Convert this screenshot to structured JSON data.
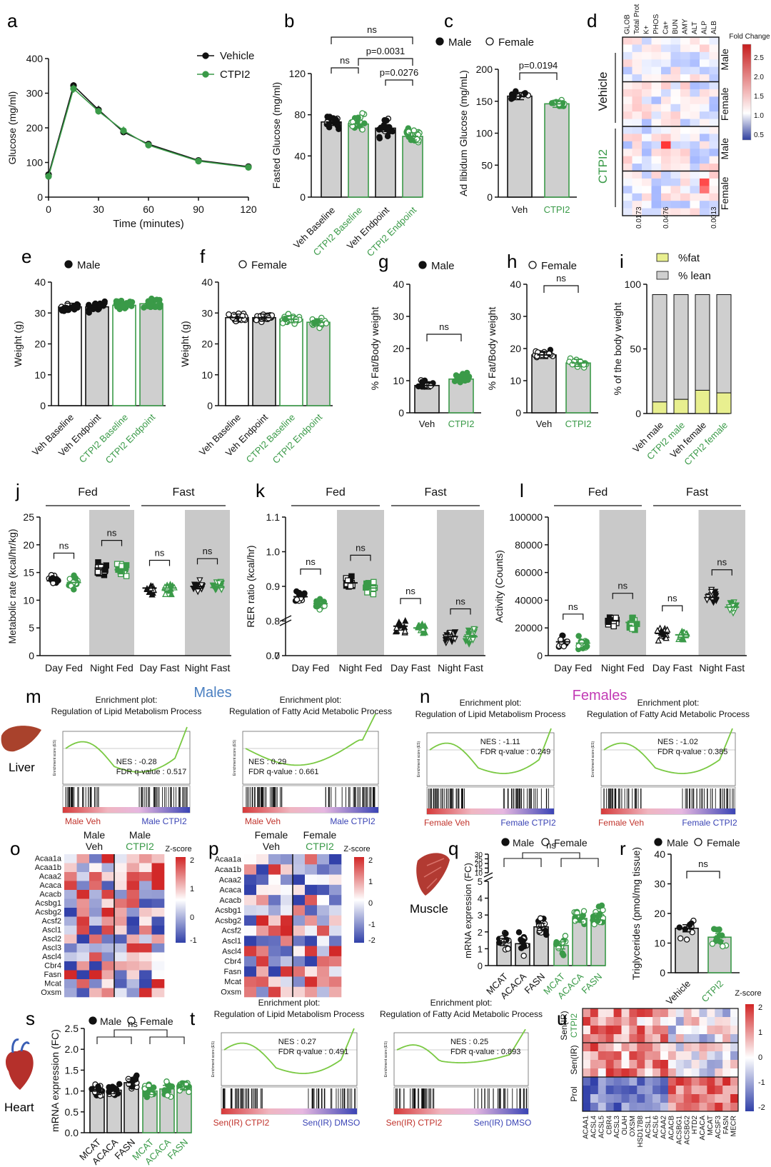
{
  "figure": {
    "panel_letters": [
      "a",
      "b",
      "c",
      "d",
      "e",
      "f",
      "g",
      "h",
      "i",
      "j",
      "k",
      "l",
      "m",
      "n",
      "o",
      "p",
      "q",
      "r",
      "s",
      "t",
      "u"
    ],
    "section_titles": {
      "males": "Males",
      "females": "Females"
    },
    "organ_labels": {
      "liver": "Liver",
      "muscle": "Muscle",
      "heart": "Heart"
    },
    "colors": {
      "vehicle": "#111111",
      "ctpi2": "#3a9a48",
      "bar_gray": "#cfcfcf",
      "shade": "#c9c9c9",
      "gsea_line": "#7ac943",
      "males_title": "#4a7fc1",
      "females_title": "#c23bb5",
      "hm_red": "#d62f2f",
      "hm_blue": "#3b4bb5",
      "fat_yellow": "#e8ef8f"
    }
  },
  "chart_data": [
    {
      "panel": "a",
      "type": "line",
      "title": "",
      "xlabel": "Time (minutes)",
      "ylabel": "Glucose (mg/ml)",
      "xlim": [
        0,
        120
      ],
      "ylim": [
        0,
        400
      ],
      "xticks": [
        0,
        30,
        60,
        90,
        120
      ],
      "yticks": [
        0,
        100,
        200,
        300,
        400
      ],
      "legend": "top-right",
      "series": [
        {
          "name": "Vehicle",
          "x": [
            0,
            15,
            30,
            45,
            60,
            90,
            120
          ],
          "y": [
            65,
            322,
            252,
            188,
            153,
            106,
            88
          ],
          "err": [
            5,
            10,
            12,
            9,
            8,
            4,
            4
          ]
        },
        {
          "name": "CTPI2",
          "x": [
            0,
            15,
            30,
            45,
            60,
            90,
            120
          ],
          "y": [
            60,
            313,
            248,
            192,
            150,
            104,
            86
          ],
          "err": [
            5,
            12,
            10,
            12,
            7,
            4,
            3
          ]
        }
      ]
    },
    {
      "panel": "b",
      "type": "bar",
      "ylabel": "Fasted Glucose (mg/ml)",
      "ylim": [
        0,
        120
      ],
      "yticks": [
        0,
        40,
        80,
        120
      ],
      "categories": [
        "Veh Baseline",
        "CTPI2 Baseline",
        "Veh Endpoint",
        "CTPI2 Endpoint"
      ],
      "values": [
        73,
        71,
        67,
        59
      ],
      "annotations": [
        "ns",
        "ns",
        "p=0.0031",
        "p=0.0276"
      ]
    },
    {
      "panel": "c",
      "type": "bar",
      "ylabel": "Ad libidum Glucose (mg/mL)",
      "ylim": [
        0,
        200
      ],
      "yticks": [
        0,
        50,
        100,
        150,
        200
      ],
      "legend": [
        "Male",
        "Female"
      ],
      "categories": [
        "Veh",
        "CTPI2"
      ],
      "values": [
        158,
        146
      ],
      "annotations": [
        "p=0.0194"
      ]
    },
    {
      "panel": "d",
      "type": "heatmap",
      "columns": [
        "GLOB",
        "Total Prot",
        "K+",
        "PHOS",
        "Ca+",
        "BUN",
        "AMY",
        "ALT",
        "ALP",
        "ALB"
      ],
      "group_labels": [
        "Vehicle",
        "CTPI2"
      ],
      "row_labels": [
        "Male",
        "Female",
        "Male",
        "Female"
      ],
      "colorbar_title": "Fold Change",
      "colorbar_ticks": [
        "2.5",
        "2.0",
        "1.5",
        "1.0",
        "0.5"
      ],
      "bottom_values": [
        "0.0173",
        "0.0476",
        "0.0013"
      ]
    },
    {
      "panel": "e",
      "type": "bar",
      "legend": [
        "Male"
      ],
      "ylabel": "Weight (g)",
      "ylim": [
        0,
        40
      ],
      "yticks": [
        0,
        10,
        20,
        30,
        40
      ],
      "categories": [
        "Veh Baseline",
        "Veh Endpoint",
        "CTPI2 Baseline",
        "CTPI2 Endpoint"
      ],
      "values": [
        32,
        32,
        32.5,
        33
      ]
    },
    {
      "panel": "f",
      "type": "bar",
      "legend": [
        "Female"
      ],
      "ylabel": "Weight (g)",
      "ylim": [
        0,
        40
      ],
      "yticks": [
        0,
        10,
        20,
        30,
        40
      ],
      "categories": [
        "Veh Baseline",
        "Veh Endpoint",
        "CTPI2 Baseline",
        "CTPI2 Endpoint"
      ],
      "values": [
        28.5,
        28.5,
        28,
        27
      ]
    },
    {
      "panel": "g",
      "type": "bar",
      "legend": [
        "Male"
      ],
      "ylabel": "% Fat/Body weight",
      "ylim": [
        0,
        40
      ],
      "yticks": [
        0,
        10,
        20,
        30,
        40
      ],
      "categories": [
        "Veh",
        "CTPI2"
      ],
      "values": [
        8.5,
        10.5
      ],
      "annotations": [
        "ns"
      ]
    },
    {
      "panel": "h",
      "type": "bar",
      "legend": [
        "Female"
      ],
      "ylabel": "% Fat/Body weight",
      "ylim": [
        0,
        40
      ],
      "yticks": [
        0,
        10,
        20,
        30,
        40
      ],
      "categories": [
        "Veh",
        "CTPI2"
      ],
      "values": [
        18,
        15.5
      ],
      "annotations": [
        "ns"
      ]
    },
    {
      "panel": "i",
      "type": "bar",
      "stacked": true,
      "ylabel": "% of the body weight",
      "ylim": [
        0,
        100
      ],
      "yticks": [
        0,
        50,
        100
      ],
      "categories": [
        "Veh male",
        "CTPI2 male",
        "Veh female",
        "CTPI2 female"
      ],
      "series": [
        {
          "name": "%fat",
          "values": [
            9,
            11,
            18,
            16
          ]
        },
        {
          "name": "% lean",
          "values": [
            83,
            81,
            74,
            76
          ]
        }
      ]
    },
    {
      "panel": "j",
      "type": "scatter",
      "group_headers": [
        "Fed",
        "Fast"
      ],
      "ylabel": "Metabolic rate (kcal/hr/kg)",
      "ylim": [
        0,
        25
      ],
      "yticks": [
        0,
        5,
        10,
        15,
        20,
        25
      ],
      "categories": [
        "Day Fed",
        "Night Fed",
        "Day Fast",
        "Night Fast"
      ],
      "veh_means": [
        13.5,
        15.8,
        12.2,
        12.5
      ],
      "ctpi2_means": [
        13.2,
        15.5,
        12.2,
        12.3
      ],
      "annotations": [
        "ns",
        "ns",
        "ns",
        "ns"
      ]
    },
    {
      "panel": "k",
      "type": "scatter",
      "group_headers": [
        "Fed",
        "Fast"
      ],
      "ylabel": "RER ratio (kcal/hr)",
      "ylim": [
        0,
        1.1
      ],
      "yticks": [
        0.7,
        0.8,
        0.9,
        1.0,
        1.1
      ],
      "categories": [
        "Day Fed",
        "Night Fed",
        "Day Fast",
        "Night Fast"
      ],
      "veh_means": [
        0.87,
        0.91,
        0.785,
        0.755
      ],
      "ctpi2_means": [
        0.85,
        0.895,
        0.78,
        0.755
      ],
      "annotations": [
        "ns",
        "ns",
        "ns",
        "ns"
      ]
    },
    {
      "panel": "l",
      "type": "scatter",
      "group_headers": [
        "Fed",
        "Fast"
      ],
      "ylabel": "Activity (Counts)",
      "ylim": [
        0,
        100000
      ],
      "yticks": [
        0,
        20000,
        40000,
        60000,
        80000,
        100000
      ],
      "categories": [
        "Day Fed",
        "Night Fed",
        "Day Fast",
        "Night Fast"
      ],
      "veh_means": [
        10000,
        25000,
        16000,
        42000
      ],
      "ctpi2_means": [
        9000,
        24000,
        15000,
        35000
      ],
      "annotations": [
        "ns",
        "ns",
        "ns",
        "ns"
      ]
    },
    {
      "panel": "m-n-t",
      "type": "line",
      "plots": [
        {
          "panel": "m",
          "title_line1": "Enrichment plot:",
          "title_line2": "Regulation of Lipid Metabolism Process",
          "nes": "NES : -0.28",
          "fdr": "FDR q-value : 0.517",
          "left_label": "Male Veh",
          "right_label": "Male CTPI2"
        },
        {
          "panel": "m",
          "title_line1": "Enrichment plot:",
          "title_line2": "Regulation of Fatty Acid Metabolic Process",
          "nes": "NES : 0.29",
          "fdr": "FDR q-value : 0.661",
          "left_label": "Male Veh",
          "right_label": "Male CTPI2"
        },
        {
          "panel": "n",
          "title_line1": "Enrichment plot:",
          "title_line2": "Regulation of Lipid Metabolism Process",
          "nes": "NES : -1.11",
          "fdr": "FDR q-value : 0.249",
          "left_label": "Female Veh",
          "right_label": "Female CTPI2"
        },
        {
          "panel": "n",
          "title_line1": "Enrichment plot:",
          "title_line2": "Regulation of Fatty Acid Metabolic Process",
          "nes": "NES : -1.02",
          "fdr": "FDR q-value : 0.385",
          "left_label": "Female Veh",
          "right_label": "Female CTPI2"
        },
        {
          "panel": "t",
          "title_line1": "Enrichment plot:",
          "title_line2": "Regulation of Lipid Metabolism Process",
          "nes": "NES : 0.27",
          "fdr": "FDR q-value : 0.491",
          "left_label": "Sen(IR) CTPI2",
          "right_label": "Sen(IR) DMSO"
        },
        {
          "panel": "t",
          "title_line1": "Enrichment plot:",
          "title_line2": "Regulation of Fatty Acid Metabolic Process",
          "nes": "NES : 0.25",
          "fdr": "FDR q-value : 0.893",
          "left_label": "Sen(IR) CTPI2",
          "right_label": "Sen(IR) DMSO"
        }
      ]
    },
    {
      "panel": "o",
      "type": "heatmap",
      "column_groups": [
        "Male Veh",
        "Male CTPI2"
      ],
      "rows": [
        "Acaa1a",
        "Acaa1b",
        "Acaa2",
        "Acaca",
        "Acacb",
        "Acsbg1",
        "Acsbg2",
        "Acsf2",
        "Ascl1",
        "Ascl2",
        "Ascl3",
        "Ascl4",
        "Cbr4",
        "Fasn",
        "Mcat",
        "Oxsm"
      ],
      "colorbar_title": "Z-score",
      "colorbar_ticks": [
        "2",
        "1",
        "0",
        "-1"
      ]
    },
    {
      "panel": "p",
      "type": "heatmap",
      "column_groups": [
        "Female Veh",
        "Female CTPI2"
      ],
      "rows": [
        "Acaa1a",
        "Acaa1b",
        "Acaa2",
        "Acaca",
        "Acacb",
        "Acsbg1",
        "Acsbg2",
        "Acsf2",
        "Ascl1",
        "Ascl4",
        "Cbr4",
        "Fasn",
        "Mcat",
        "Oxsm"
      ],
      "colorbar_title": "Z-score",
      "colorbar_ticks": [
        "2",
        "1",
        "0",
        "-1",
        "-2"
      ]
    },
    {
      "panel": "q",
      "type": "bar",
      "legend": [
        "Male",
        "Female"
      ],
      "ylabel": "mRNA expression (FC)",
      "ylim": [
        0,
        30
      ],
      "yticks_low": [
        0,
        1,
        2,
        3,
        4,
        5
      ],
      "yticks_high": [
        10,
        15,
        20,
        25,
        30
      ],
      "categories": [
        "MCAT",
        "ACACA",
        "FASN",
        "MCAT",
        "ACACA",
        "FASN"
      ],
      "values": [
        1.4,
        1.3,
        2.3,
        1.2,
        2.8,
        2.9
      ],
      "annotations": [
        "ns"
      ]
    },
    {
      "panel": "r",
      "type": "bar",
      "legend": [
        "Male",
        "Female"
      ],
      "ylabel": "Triglycerides (pmol/mg tissue)",
      "ylim": [
        0,
        40
      ],
      "yticks": [
        0,
        10,
        20,
        30,
        40
      ],
      "categories": [
        "Vehicle",
        "CTPI2"
      ],
      "values": [
        15,
        12
      ],
      "annotations": [
        "ns"
      ]
    },
    {
      "panel": "s",
      "type": "bar",
      "legend": [
        "Male",
        "Female"
      ],
      "ylabel": "mRNA expression (FC)",
      "ylim": [
        0,
        2.5
      ],
      "yticks": [
        0.0,
        0.5,
        1.0,
        1.5,
        2.0,
        2.5
      ],
      "categories": [
        "MCAT",
        "ACACA",
        "FASN",
        "MCAT",
        "ACACA",
        "FASN"
      ],
      "values": [
        1.0,
        1.02,
        1.2,
        1.0,
        1.05,
        1.12
      ],
      "annotations": [
        "ns"
      ]
    },
    {
      "panel": "u",
      "type": "heatmap",
      "row_groups": [
        "Sen(IR) CTPI2",
        "Sen(IR)",
        "Prol"
      ],
      "columns": [
        "ACAA1",
        "ACSL4",
        "ACSL5",
        "CBR4",
        "ACSL3",
        "OLAH",
        "OXSM",
        "HSD17B8",
        "ACSL1",
        "ACSL6",
        "ACAA2",
        "ACACB",
        "ACSBG1",
        "ACSBG2",
        "HTD2",
        "ACACA",
        "MCAT",
        "ACSF3",
        "FASN",
        "MECR"
      ],
      "colorbar_title": "Z-score",
      "colorbar_ticks": [
        "2",
        "1",
        "0",
        "-1",
        "-2"
      ]
    }
  ]
}
